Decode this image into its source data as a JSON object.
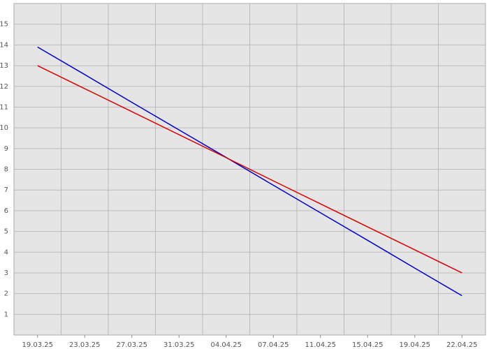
{
  "chart_data": {
    "type": "line",
    "categories": [
      "19.03.25",
      "23.03.25",
      "27.03.25",
      "31.03.25",
      "04.04.25",
      "07.04.25",
      "11.04.25",
      "15.04.25",
      "19.04.25",
      "22.04.25"
    ],
    "series": [
      {
        "color": "#0000cc",
        "values": [
          13.9,
          12.57,
          11.23,
          9.9,
          8.57,
          7.23,
          5.9,
          4.57,
          3.23,
          1.9
        ]
      },
      {
        "color": "#dd0000",
        "values": [
          13,
          11.89,
          10.78,
          9.67,
          8.56,
          7.44,
          6.33,
          5.22,
          4.11,
          3
        ]
      }
    ],
    "ylim": [
      0,
      16
    ],
    "yticks": [
      1,
      2,
      3,
      4,
      5,
      6,
      7,
      8,
      9,
      10,
      11,
      12,
      13,
      14,
      15
    ],
    "grid": true
  }
}
